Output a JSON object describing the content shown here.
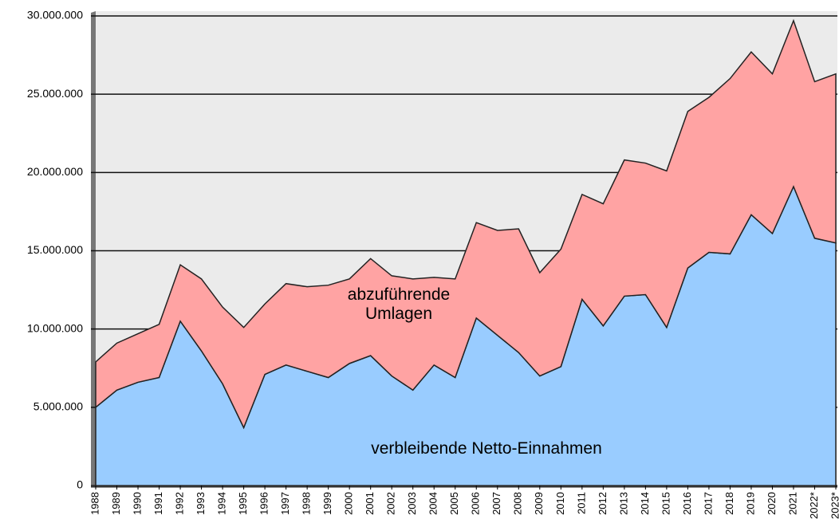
{
  "chart_data": {
    "type": "stacked_area",
    "categories": [
      "1988",
      "1989",
      "1990",
      "1991",
      "1992",
      "1993",
      "1994",
      "1995",
      "1996",
      "1997",
      "1998",
      "1999",
      "2000",
      "2001",
      "2002",
      "2003",
      "2004",
      "2005",
      "2006",
      "2007",
      "2008",
      "2009",
      "2010",
      "2011",
      "2012",
      "2013",
      "2014",
      "2015",
      "2016",
      "2017",
      "2018",
      "2019",
      "2020",
      "2021",
      "2022*",
      "2023*"
    ],
    "series": [
      {
        "name": "verbleibende Netto-Einnahmen",
        "color": "#99ccff",
        "values": [
          5000000,
          6100000,
          6600000,
          6900000,
          10500000,
          8600000,
          6500000,
          3700000,
          7100000,
          7700000,
          7300000,
          6900000,
          7800000,
          8300000,
          7000000,
          6100000,
          7700000,
          6900000,
          10700000,
          9600000,
          8500000,
          7000000,
          7600000,
          11900000,
          10200000,
          12100000,
          12200000,
          10100000,
          13900000,
          14900000,
          14800000,
          17300000,
          16100000,
          19100000,
          15800000,
          15500000
        ]
      },
      {
        "name": "abzuführende Umlagen",
        "color": "#ffa3a3",
        "values": [
          2900000,
          3000000,
          3100000,
          3400000,
          3600000,
          4600000,
          4900000,
          6400000,
          4500000,
          5200000,
          5400000,
          5900000,
          5400000,
          6200000,
          6400000,
          7100000,
          5600000,
          6300000,
          6100000,
          6700000,
          7900000,
          6600000,
          7500000,
          6700000,
          7800000,
          8700000,
          8400000,
          10000000,
          10000000,
          9900000,
          11200000,
          10400000,
          10200000,
          10600000,
          10000000,
          10800000
        ]
      }
    ],
    "ylim": [
      0,
      30000000
    ],
    "yticks": [
      0,
      {
        "value": 5000000,
        "label": "5.000.000"
      },
      {
        "value": 10000000,
        "label": "10.000.000"
      },
      {
        "value": 15000000,
        "label": "15.000.000"
      },
      {
        "value": 20000000,
        "label": "20.000.000"
      },
      {
        "value": 25000000,
        "label": "25.000.000"
      },
      {
        "value": 30000000,
        "label": "30.000.000"
      }
    ],
    "grid": true
  }
}
